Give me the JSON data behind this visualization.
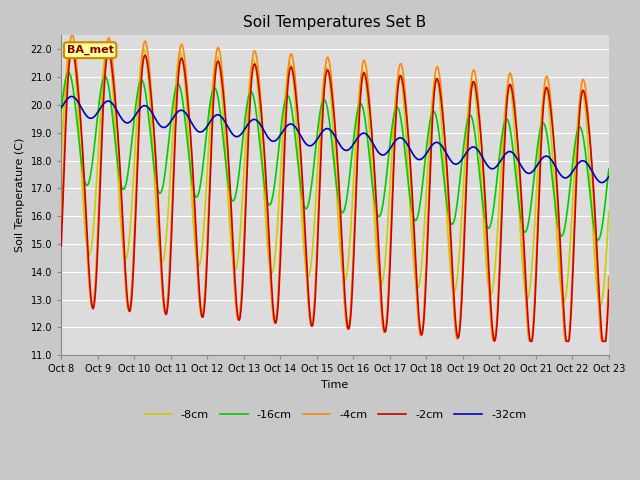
{
  "title": "Soil Temperatures Set B",
  "xlabel": "Time",
  "ylabel": "Soil Temperature (C)",
  "ylim": [
    11.0,
    22.5
  ],
  "yticks": [
    11.0,
    12.0,
    13.0,
    14.0,
    15.0,
    16.0,
    17.0,
    18.0,
    19.0,
    20.0,
    21.0,
    22.0
  ],
  "xtick_labels": [
    "Oct 8",
    "Oct 9",
    "Oct 10",
    "Oct 11",
    "Oct 12",
    "Oct 13",
    "Oct 14",
    "Oct 15",
    "Oct 16",
    "Oct 17",
    "Oct 18",
    "Oct 19",
    "Oct 20",
    "Oct 21",
    "Oct 22",
    "Oct 23"
  ],
  "legend_labels": [
    "-2cm",
    "-4cm",
    "-8cm",
    "-16cm",
    "-32cm"
  ],
  "colors": {
    "-2cm": "#cc0000",
    "-4cm": "#ff8800",
    "-8cm": "#cccc00",
    "-16cm": "#00cc00",
    "-32cm": "#0000bb"
  },
  "annotation_text": "BA_met",
  "annotation_bg": "#ffff99",
  "annotation_border": "#cc8800",
  "annotation_text_color": "#880000",
  "fig_bg": "#c8c8c8",
  "plot_bg": "#dcdcdc",
  "grid_color": "#ffffff",
  "linewidth": 1.2,
  "title_fontsize": 11,
  "legend_fontsize": 8,
  "axis_fontsize": 8,
  "tick_fontsize": 7
}
